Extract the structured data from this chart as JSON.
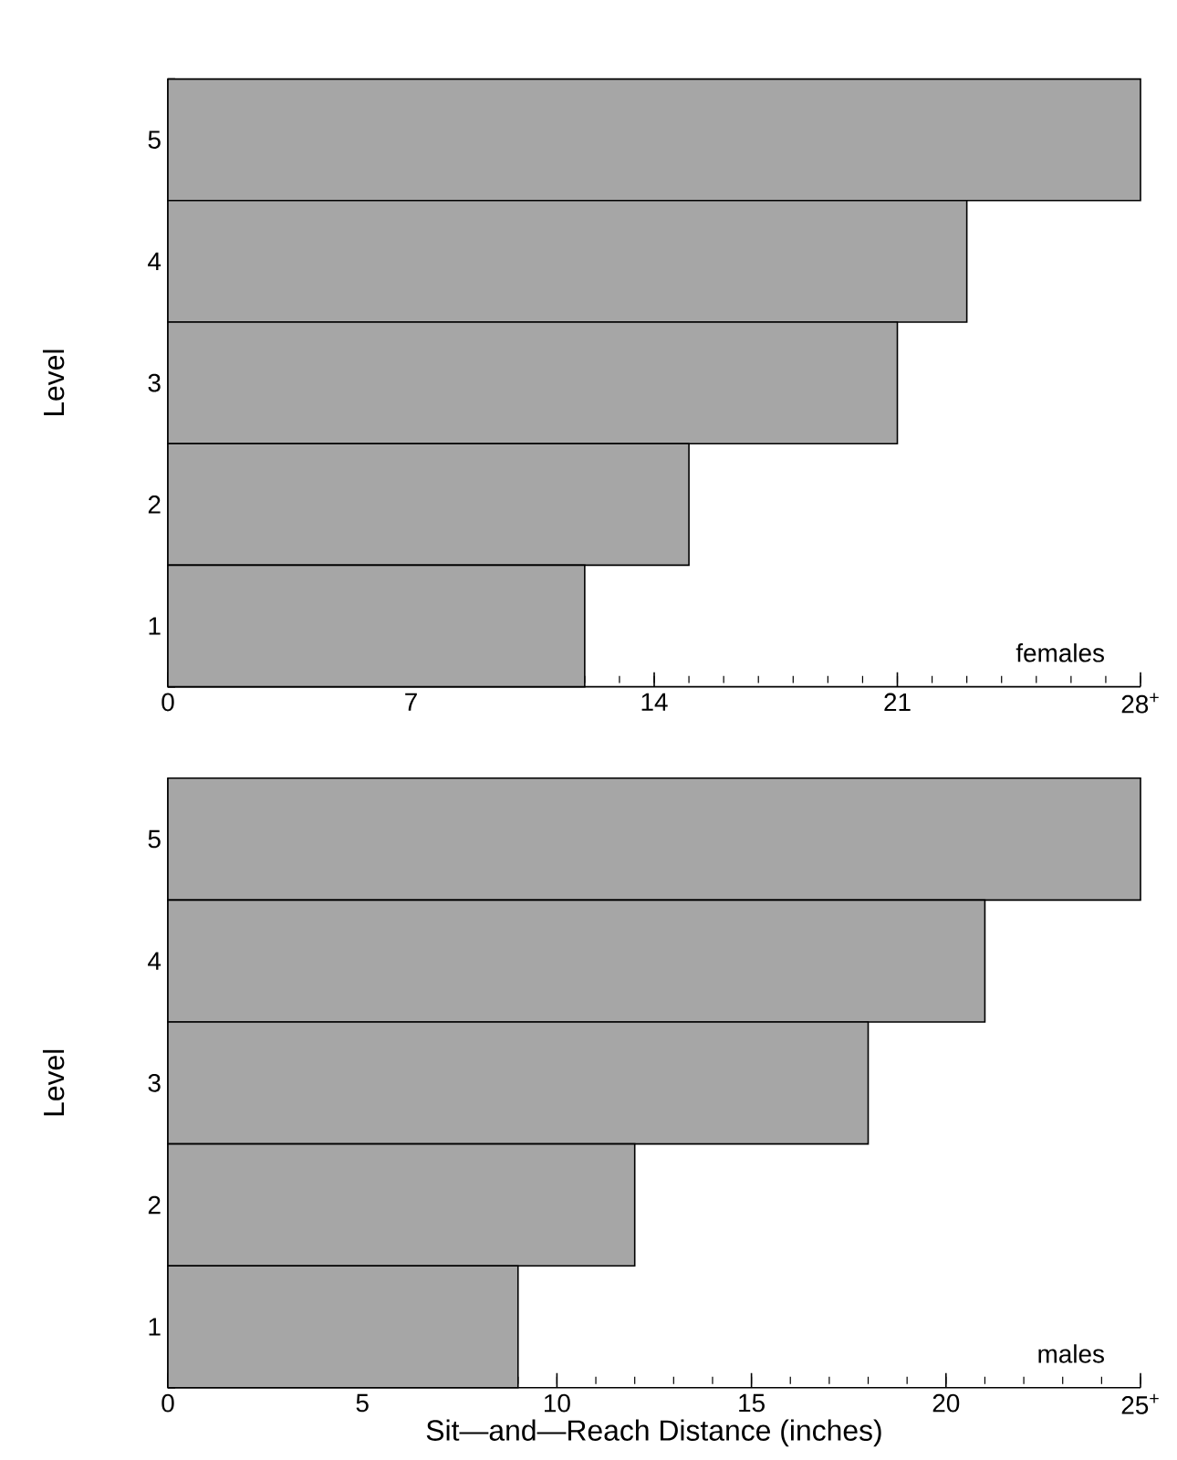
{
  "chart_data": [
    {
      "type": "bar",
      "orientation": "horizontal",
      "ylabel": "Level",
      "categories": [
        "5",
        "4",
        "3",
        "2",
        "1"
      ],
      "values": [
        28,
        23,
        21,
        15,
        12
      ],
      "color": "#a6a6a6",
      "xlim": [
        0,
        28
      ],
      "xticks": [
        0,
        7,
        14,
        21,
        {
          "value": 28,
          "label": "28$^{+}$"
        }
      ],
      "annotations": [
        "females"
      ]
    },
    {
      "type": "bar",
      "orientation": "horizontal",
      "xlabel": "Sit—and—Reach Distance (inches)",
      "ylabel": "Level",
      "categories": [
        "5",
        "4",
        "3",
        "2",
        "1"
      ],
      "values": [
        25,
        21,
        18,
        12,
        9
      ],
      "color": "#a6a6a6",
      "xlim": [
        0,
        25
      ],
      "xticks": [
        0,
        5,
        10,
        15,
        20,
        {
          "value": 25,
          "label": "25$^{+}$"
        }
      ],
      "annotations": [
        "males"
      ]
    }
  ]
}
